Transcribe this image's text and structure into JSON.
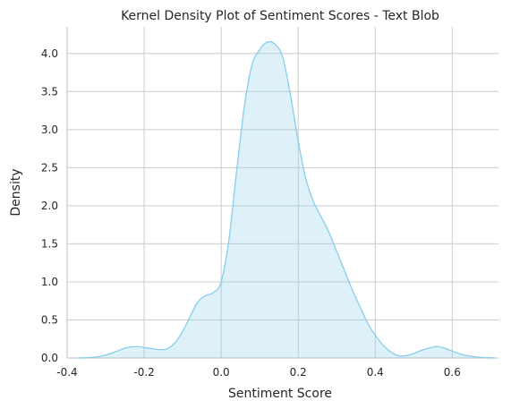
{
  "chart_data": {
    "type": "area",
    "title": "Kernel Density Plot of Sentiment Scores - Text Blob",
    "xlabel": "Sentiment Score",
    "ylabel": "Density",
    "xlim": [
      -0.4,
      0.72
    ],
    "ylim": [
      0,
      4.35
    ],
    "xticks": [
      -0.4,
      -0.2,
      0.0,
      0.2,
      0.4,
      0.6
    ],
    "xtick_labels": [
      "-0.4",
      "-0.2",
      "0.0",
      "0.2",
      "0.4",
      "0.6"
    ],
    "yticks": [
      0.0,
      0.5,
      1.0,
      1.5,
      2.0,
      2.5,
      3.0,
      3.5,
      4.0
    ],
    "ytick_labels": [
      "0.0",
      "0.5",
      "1.0",
      "1.5",
      "2.0",
      "2.5",
      "3.0",
      "3.5",
      "4.0"
    ],
    "grid": true,
    "line_color": "#87ceeb",
    "fill_color": "#87ceeb",
    "fill_opacity": 0.28,
    "series": [
      {
        "x": [
          -0.37,
          -0.33,
          -0.3,
          -0.27,
          -0.25,
          -0.22,
          -0.19,
          -0.16,
          -0.14,
          -0.12,
          -0.1,
          -0.08,
          -0.06,
          -0.04,
          -0.02,
          0.0,
          0.02,
          0.04,
          0.06,
          0.08,
          0.1,
          0.12,
          0.14,
          0.16,
          0.18,
          0.2,
          0.22,
          0.24,
          0.26,
          0.28,
          0.3,
          0.32,
          0.34,
          0.36,
          0.38,
          0.4,
          0.42,
          0.44,
          0.46,
          0.48,
          0.5,
          0.52,
          0.54,
          0.56,
          0.58,
          0.6,
          0.63,
          0.66,
          0.69,
          0.71
        ],
        "y": [
          0.0,
          0.01,
          0.04,
          0.09,
          0.13,
          0.15,
          0.13,
          0.11,
          0.12,
          0.2,
          0.35,
          0.55,
          0.74,
          0.82,
          0.86,
          1.0,
          1.55,
          2.45,
          3.3,
          3.85,
          4.05,
          4.15,
          4.12,
          3.95,
          3.45,
          2.85,
          2.35,
          2.05,
          1.85,
          1.65,
          1.4,
          1.15,
          0.9,
          0.68,
          0.46,
          0.3,
          0.17,
          0.08,
          0.03,
          0.03,
          0.06,
          0.1,
          0.13,
          0.15,
          0.13,
          0.09,
          0.04,
          0.015,
          0.004,
          0.0
        ]
      }
    ]
  }
}
